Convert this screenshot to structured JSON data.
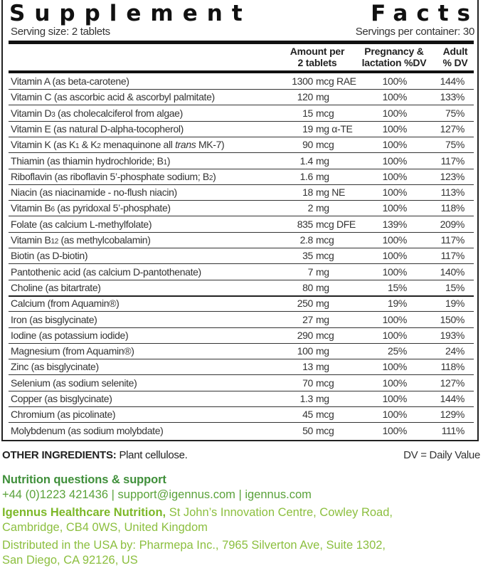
{
  "title_left": "Supplement",
  "title_right": "Facts",
  "serving_size": "Serving size: 2 tablets",
  "servings_per_container": "Servings per container: 30",
  "headers": {
    "amount_1": "Amount per",
    "amount_2": "2 tablets",
    "preg_1": "Pregnancy &",
    "preg_2": "lactation %DV",
    "adult_1": "Adult",
    "adult_2": "% DV"
  },
  "rows": [
    {
      "name": "Vitamin A (as beta-carotene)",
      "num": "1300",
      "unit": "mcg RAE",
      "preg": "100%",
      "adult": "144%"
    },
    {
      "name": "Vitamin C (as ascorbic acid & ascorbyl palmitate)",
      "num": "120",
      "unit": "mg",
      "preg": "100%",
      "adult": "133%"
    },
    {
      "name_a": "Vitamin D",
      "name_sub": "3",
      "name_b": " (as cholecalciferol from algae)",
      "num": "15",
      "unit": "mcg",
      "preg": "100%",
      "adult": "75%"
    },
    {
      "name": "Vitamin E (as natural D-alpha-tocopherol)",
      "num": "19",
      "unit": "mg α-TE",
      "preg": "100%",
      "adult": "127%"
    },
    {
      "name_a": "Vitamin K (as K",
      "name_sub": "1",
      "name_b": " & K",
      "name_sub2": "2",
      "name_c": " menaquinone all ",
      "name_i": "trans",
      "name_d": " MK-7)",
      "num": "90",
      "unit": "mcg",
      "preg": "100%",
      "adult": "75%"
    },
    {
      "name_a": "Thiamin (as thiamin hydrochloride; B",
      "name_sub": "1",
      "name_b": ")",
      "num": "1.4",
      "unit": "mg",
      "preg": "100%",
      "adult": "117%"
    },
    {
      "name_a": "Riboflavin (as riboflavin 5’-phosphate sodium; B",
      "name_sub": "2",
      "name_b": ")",
      "num": "1.6",
      "unit": "mg",
      "preg": "100%",
      "adult": "123%"
    },
    {
      "name": "Niacin (as niacinamide - no-flush niacin)",
      "num": "18",
      "unit": "mg NE",
      "preg": "100%",
      "adult": "113%"
    },
    {
      "name_a": "Vitamin B",
      "name_sub": "6",
      "name_b": " (as pyridoxal 5’-phosphate)",
      "num": "2",
      "unit": "mg",
      "preg": "100%",
      "adult": "118%"
    },
    {
      "name": "Folate (as calcium L-methylfolate)",
      "num": "835",
      "unit": "mcg DFE",
      "preg": "139%",
      "adult": "209%"
    },
    {
      "name_a": "Vitamin B",
      "name_sub": "12",
      "name_b": " (as methylcobalamin)",
      "num": "2.8",
      "unit": "mcg",
      "preg": "100%",
      "adult": "117%"
    },
    {
      "name": "Biotin (as D-biotin)",
      "num": "35",
      "unit": "mcg",
      "preg": "100%",
      "adult": "117%"
    },
    {
      "name": "Pantothenic acid (as calcium D-pantothenate)",
      "num": "7",
      "unit": "mg",
      "preg": "100%",
      "adult": "140%"
    },
    {
      "name": "Choline (as bitartrate)",
      "num": "80",
      "unit": "mg",
      "preg": "15%",
      "adult": "15%"
    },
    {
      "name": "Calcium (from Aquamin®)",
      "num": "250",
      "unit": "mg",
      "preg": "19%",
      "adult": "19%"
    },
    {
      "name": "Iron (as bisglycinate)",
      "num": "27",
      "unit": "mg",
      "preg": "100%",
      "adult": "150%"
    },
    {
      "name": "Iodine (as potassium iodide)",
      "num": "290",
      "unit": "mcg",
      "preg": "100%",
      "adult": "193%"
    },
    {
      "name": "Magnesium (from Aquamin®)",
      "num": "100",
      "unit": "mg",
      "preg": "25%",
      "adult": "24%"
    },
    {
      "name": "Zinc (as bisglycinate)",
      "num": "13",
      "unit": "mg",
      "preg": "100%",
      "adult": "118%"
    },
    {
      "name": "Selenium (as sodium selenite)",
      "num": "70",
      "unit": "mcg",
      "preg": "100%",
      "adult": "127%"
    },
    {
      "name": "Copper (as bisglycinate)",
      "num": "1.3",
      "unit": "mg",
      "preg": "100%",
      "adult": "144%"
    },
    {
      "name": "Chromium (as picolinate)",
      "num": "45",
      "unit": "mcg",
      "preg": "100%",
      "adult": "129%"
    },
    {
      "name": "Molybdenum (as sodium molybdate)",
      "num": "50",
      "unit": "mcg",
      "preg": "100%",
      "adult": "111%"
    }
  ],
  "other_label": "OTHER INGREDIENTS:",
  "other_value": " Plant cellulose.",
  "dv_note": "DV = Daily Value",
  "support_heading": "Nutrition questions & support",
  "support_contact": "+44 (0)1223 421436 | support@igennus.com | igennus.com",
  "company_name": "Igennus Healthcare Nutrition,",
  "company_addr_1": " St John’s Innovation Centre, Cowley Road,",
  "company_addr_2": "Cambridge, CB4 0WS, United Kingdom",
  "distributor_1": "Distributed in the USA by: Pharmepa Inc., 7965 Silverton Ave, Suite 1302,",
  "distributor_2": "San Diego, CA 92126, US",
  "colors": {
    "dark_green": "#3f8f3a",
    "mid_green": "#5aa23a",
    "light_green": "#8cbf3f"
  }
}
